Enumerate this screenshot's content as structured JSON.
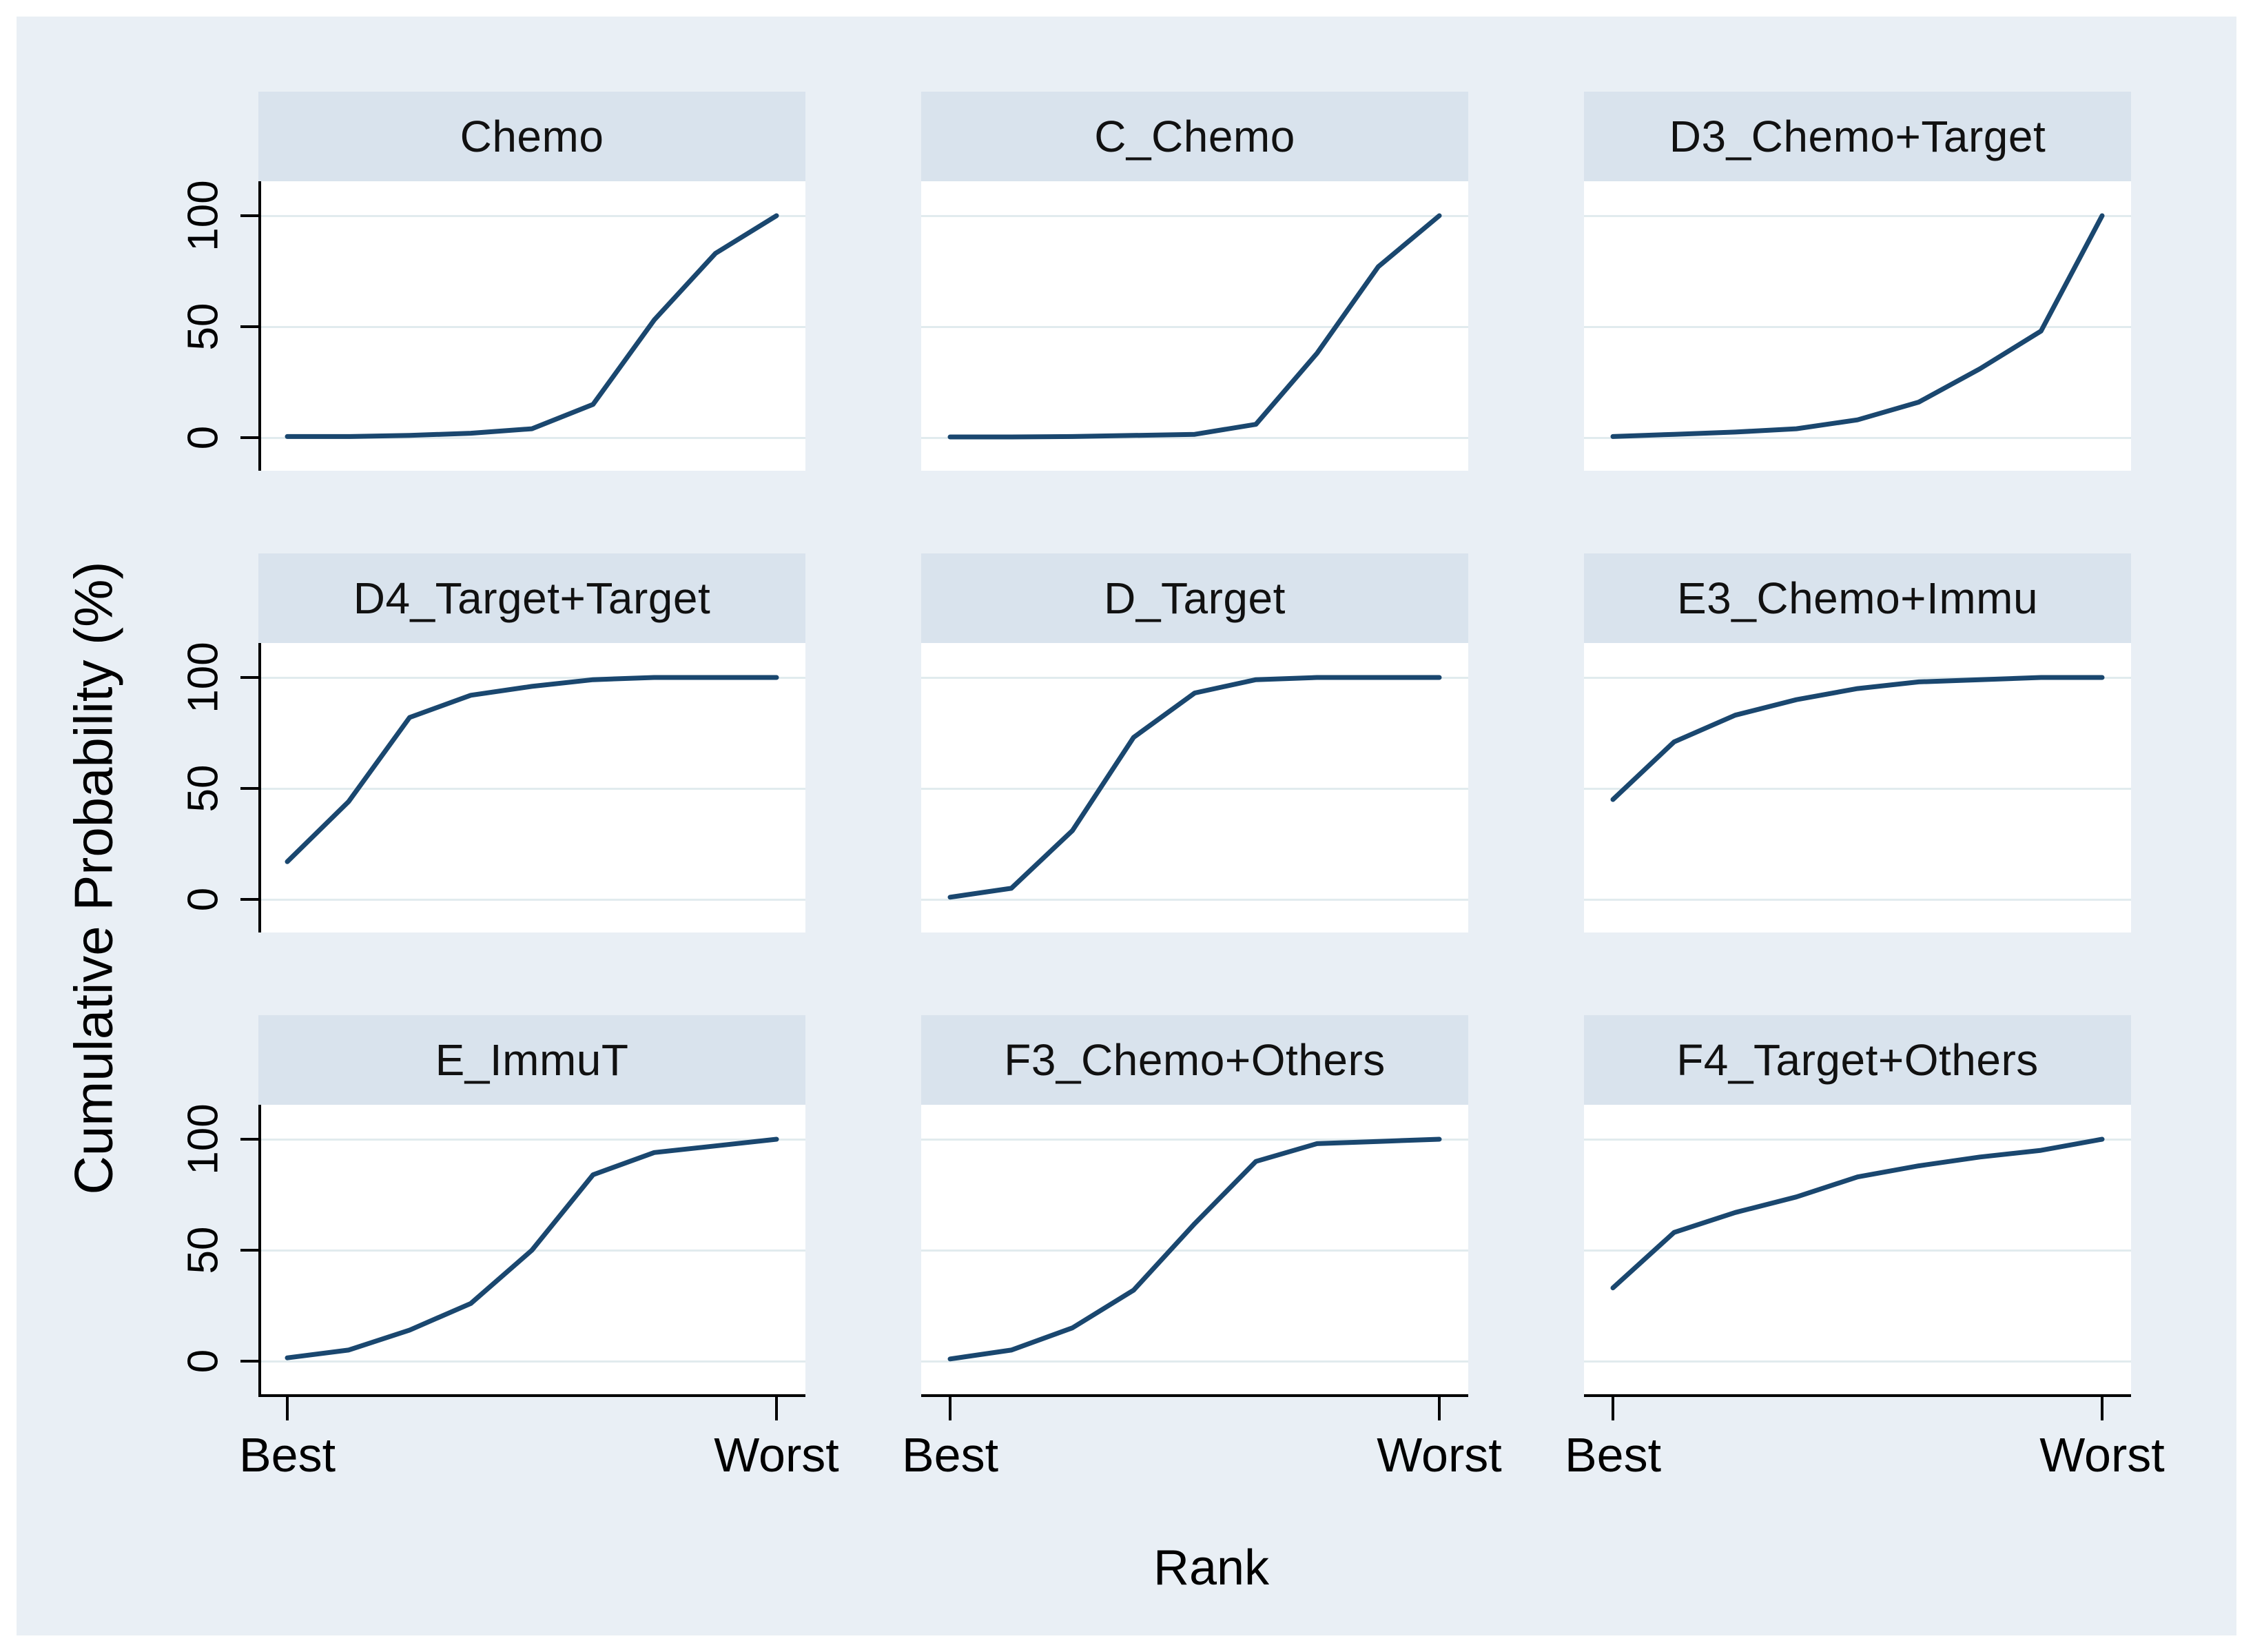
{
  "figure": {
    "colors": {
      "background": "#e9eff5",
      "title_band": "#d9e3ed",
      "plot_background": "#ffffff",
      "gridline": "#e1ebee",
      "axis": "#000000",
      "line": "#1a476f",
      "text": "#111111"
    }
  },
  "chart_data": {
    "type": "line",
    "layout": "3x3_small_multiples",
    "title": "",
    "xlabel": "Rank",
    "ylabel": "Cumulative Probability (%)",
    "x": [
      1,
      2,
      3,
      4,
      5,
      6,
      7,
      8,
      9
    ],
    "x_tick_labels": [
      "Best",
      "Worst"
    ],
    "y_ticks": [
      "0",
      "50",
      "100"
    ],
    "ylim": [
      0,
      100
    ],
    "grid": "horizontal-at-ticks",
    "line_color": "#1a476f",
    "panels": [
      {
        "title": "Chemo",
        "values": [
          0.5,
          0.5,
          1,
          2,
          4,
          15,
          53,
          83,
          100
        ]
      },
      {
        "title": "C_Chemo",
        "values": [
          0.3,
          0.3,
          0.5,
          1,
          1.5,
          6,
          38,
          77,
          100
        ]
      },
      {
        "title": "D3_Chemo+Target",
        "values": [
          0.5,
          1.5,
          2.5,
          4,
          8,
          16,
          31,
          48,
          100
        ]
      },
      {
        "title": "D4_Target+Target",
        "values": [
          17,
          44,
          82,
          92,
          96,
          99,
          100,
          100,
          100
        ]
      },
      {
        "title": "D_Target",
        "values": [
          1,
          5,
          31,
          73,
          93,
          99,
          100,
          100,
          100
        ]
      },
      {
        "title": "E3_Chemo+Immu",
        "values": [
          45,
          71,
          83,
          90,
          95,
          98,
          99,
          100,
          100
        ]
      },
      {
        "title": "E_ImmuT",
        "values": [
          1.5,
          5,
          14,
          26,
          50,
          84,
          94,
          97,
          100
        ]
      },
      {
        "title": "F3_Chemo+Others",
        "values": [
          1,
          5,
          15,
          32,
          62,
          90,
          98,
          99,
          100
        ]
      },
      {
        "title": "F4_Target+Others",
        "values": [
          33,
          58,
          67,
          74,
          83,
          88,
          92,
          95,
          100
        ]
      }
    ]
  }
}
